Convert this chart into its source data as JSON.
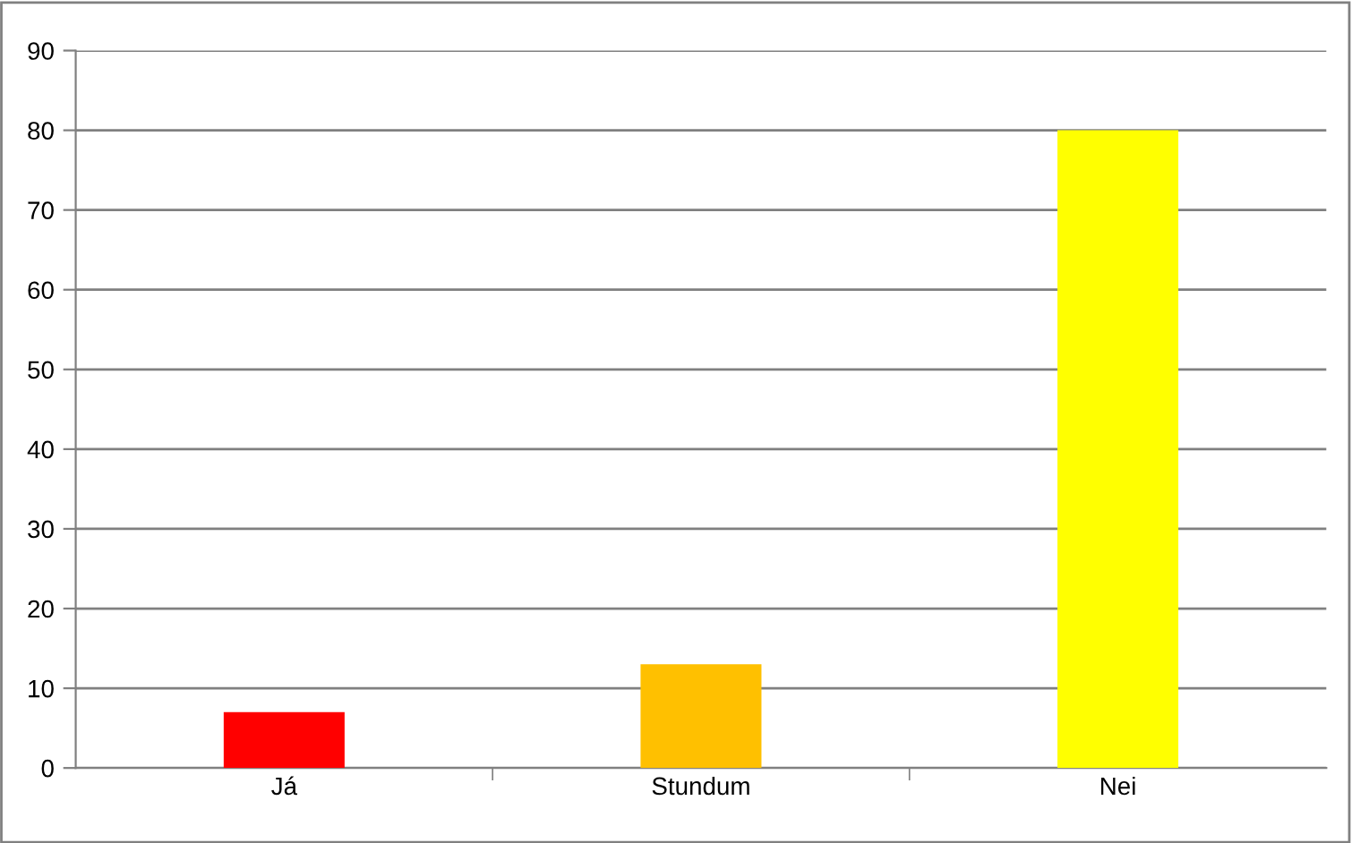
{
  "chart_data": {
    "type": "bar",
    "categories": [
      "Já",
      "Stundum",
      "Nei"
    ],
    "values": [
      7,
      13,
      80
    ],
    "colors": [
      "#ff0000",
      "#ffc000",
      "#ffff00"
    ],
    "ylim": [
      0,
      90
    ],
    "yticks": [
      0,
      10,
      20,
      30,
      40,
      50,
      60,
      70,
      80,
      90
    ],
    "grid": "y",
    "legend": false
  }
}
